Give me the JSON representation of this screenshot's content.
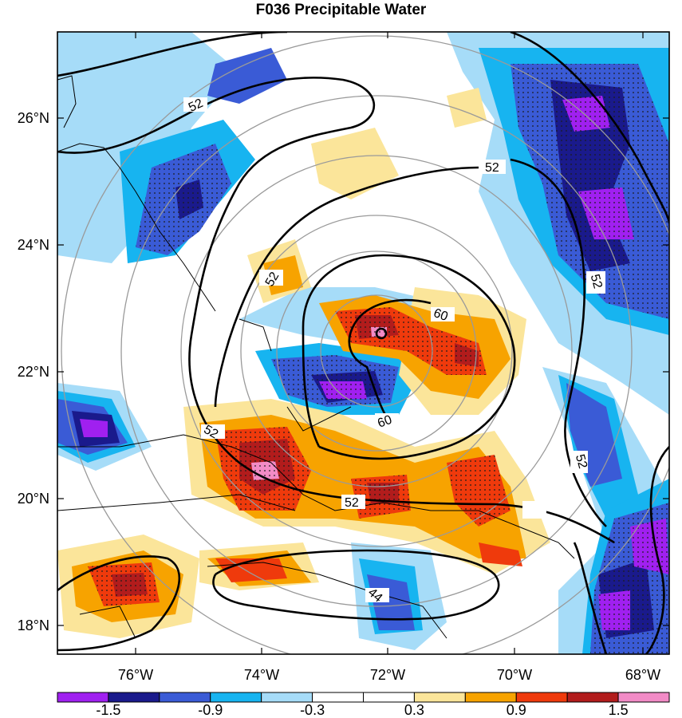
{
  "title": "F036 Precipitable Water",
  "lon_ticks": [
    "76°W",
    "74°W",
    "72°W",
    "70°W",
    "68°W"
  ],
  "lat_ticks": [
    "26°N",
    "24°N",
    "22°N",
    "20°N",
    "18°N"
  ],
  "colorbar": {
    "colors": [
      "#a020f0",
      "#1a1a8c",
      "#3a5bd6",
      "#17b4f0",
      "#a6dcf8",
      "#ffffff",
      "#ffffff",
      "#fbe59a",
      "#f7a300",
      "#ef3a0c",
      "#b21c1c",
      "#f28bc6"
    ],
    "labels": [
      "-1.5",
      "-0.9",
      "-0.3",
      "0.3",
      "0.9",
      "1.5"
    ]
  },
  "contour_labels": [
    "52",
    "52",
    "52",
    "52",
    "52",
    "52",
    "52",
    "60",
    "60",
    "44"
  ],
  "colors": {
    "dots": "#1a1a1a",
    "rings": "#9a9a9a"
  }
}
